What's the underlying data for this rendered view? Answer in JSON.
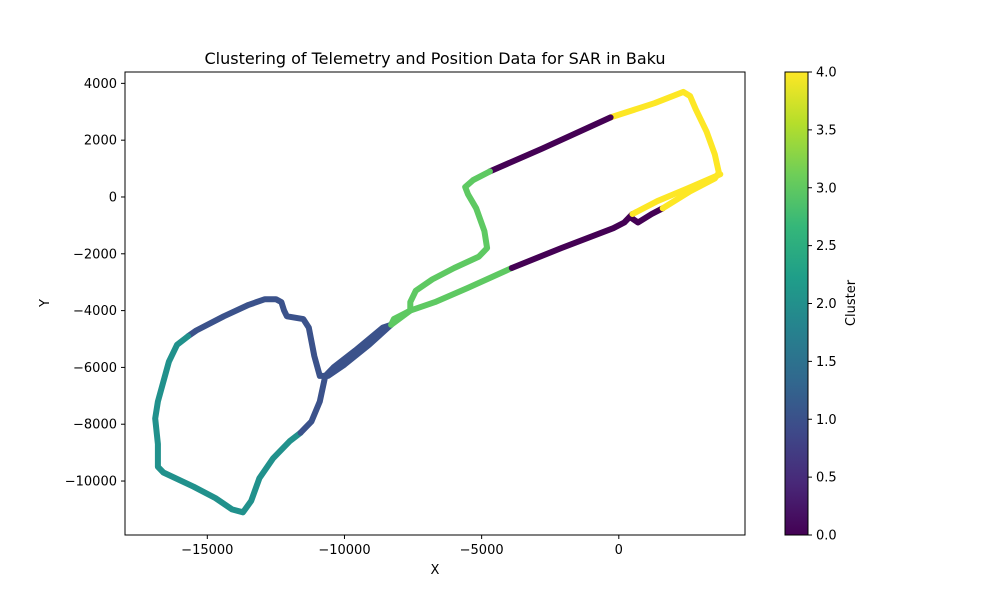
{
  "chart_data": {
    "type": "scatter",
    "title": "Clustering of Telemetry and Position Data for SAR in Baku",
    "xlabel": "X",
    "ylabel": "Y",
    "xlim": [
      -18000,
      4600
    ],
    "ylim": [
      -11900,
      4400
    ],
    "xticks": [
      -15000,
      -10000,
      -5000,
      0
    ],
    "xtick_labels": [
      "−15000",
      "−10000",
      "−5000",
      "0"
    ],
    "yticks": [
      4000,
      2000,
      0,
      -2000,
      -4000,
      -6000,
      -8000,
      -10000
    ],
    "ytick_labels": [
      "4000",
      "2000",
      "0",
      "−2000",
      "−4000",
      "−6000",
      "−8000",
      "−10000"
    ],
    "grid": false,
    "colorbar": {
      "label": "Cluster",
      "range": [
        0,
        4
      ],
      "ticks": [
        0,
        0.5,
        1,
        1.5,
        2,
        2.5,
        3,
        3.5,
        4
      ],
      "tick_labels": [
        "0.0",
        "0.5",
        "1.0",
        "1.5",
        "2.0",
        "2.5",
        "3.0",
        "3.5",
        "4.0"
      ],
      "colormap_stops": [
        "#440154",
        "#482878",
        "#3e4989",
        "#31688e",
        "#26828e",
        "#1f9e89",
        "#35b779",
        "#6ece58",
        "#b5de2b",
        "#fde725"
      ]
    },
    "cluster_colors": {
      "0": "#440154",
      "1": "#3b528b",
      "2": "#21918c",
      "3": "#5ec962",
      "4": "#fde725"
    },
    "track": [
      {
        "cluster": 0,
        "points": [
          [
            400,
            -700
          ],
          [
            700,
            -900
          ],
          [
            1200,
            -600
          ],
          [
            1600,
            -400
          ]
        ]
      },
      {
        "cluster": 4,
        "points": [
          [
            1600,
            -400
          ],
          [
            2600,
            200
          ],
          [
            3500,
            650
          ],
          [
            3650,
            850
          ],
          [
            3500,
            1500
          ],
          [
            3200,
            2300
          ],
          [
            2800,
            3100
          ],
          [
            2600,
            3550
          ],
          [
            2350,
            3700
          ],
          [
            1300,
            3300
          ],
          [
            -300,
            2800
          ]
        ]
      },
      {
        "cluster": 0,
        "points": [
          [
            -300,
            2800
          ],
          [
            -2800,
            1700
          ],
          [
            -4700,
            900
          ]
        ]
      },
      {
        "cluster": 3,
        "points": [
          [
            -4700,
            900
          ],
          [
            -5300,
            600
          ],
          [
            -5600,
            350
          ],
          [
            -5500,
            100
          ],
          [
            -5200,
            -400
          ],
          [
            -4900,
            -1200
          ],
          [
            -4800,
            -1800
          ],
          [
            -5100,
            -2100
          ],
          [
            -6000,
            -2500
          ],
          [
            -6800,
            -2900
          ],
          [
            -7400,
            -3300
          ],
          [
            -7600,
            -3700
          ],
          [
            -7600,
            -4000
          ],
          [
            -7800,
            -4100
          ],
          [
            -8200,
            -4300
          ],
          [
            -8300,
            -4500
          ]
        ]
      },
      {
        "cluster": 1,
        "points": [
          [
            -8300,
            -4500
          ],
          [
            -9100,
            -5200
          ],
          [
            -10000,
            -5900
          ],
          [
            -10600,
            -6300
          ],
          [
            -10900,
            -6300
          ],
          [
            -11100,
            -5600
          ],
          [
            -11300,
            -4600
          ],
          [
            -11500,
            -4300
          ],
          [
            -12100,
            -4200
          ],
          [
            -12200,
            -4000
          ],
          [
            -12300,
            -3700
          ],
          [
            -12500,
            -3600
          ],
          [
            -12900,
            -3600
          ],
          [
            -13500,
            -3800
          ],
          [
            -14400,
            -4200
          ],
          [
            -15400,
            -4700
          ],
          [
            -15700,
            -4900
          ]
        ]
      },
      {
        "cluster": 2,
        "points": [
          [
            -15700,
            -4900
          ],
          [
            -16100,
            -5200
          ],
          [
            -16400,
            -5800
          ],
          [
            -16600,
            -6500
          ],
          [
            -16800,
            -7200
          ],
          [
            -16900,
            -7800
          ],
          [
            -16800,
            -8700
          ],
          [
            -16800,
            -9500
          ],
          [
            -16600,
            -9700
          ],
          [
            -15500,
            -10200
          ],
          [
            -14700,
            -10600
          ],
          [
            -14100,
            -11000
          ],
          [
            -13700,
            -11100
          ],
          [
            -13400,
            -10700
          ],
          [
            -13100,
            -9900
          ],
          [
            -12600,
            -9200
          ],
          [
            -12000,
            -8600
          ],
          [
            -11600,
            -8300
          ]
        ]
      },
      {
        "cluster": 1,
        "points": [
          [
            -11600,
            -8300
          ],
          [
            -11200,
            -7900
          ],
          [
            -10900,
            -7200
          ],
          [
            -10700,
            -6300
          ],
          [
            -10400,
            -6000
          ],
          [
            -9600,
            -5400
          ],
          [
            -8600,
            -4600
          ],
          [
            -8300,
            -4500
          ]
        ]
      },
      {
        "cluster": 3,
        "points": [
          [
            -8300,
            -4500
          ],
          [
            -7600,
            -4000
          ],
          [
            -6700,
            -3700
          ],
          [
            -5500,
            -3200
          ],
          [
            -3900,
            -2500
          ]
        ]
      },
      {
        "cluster": 0,
        "points": [
          [
            -3900,
            -2500
          ],
          [
            -2100,
            -1800
          ],
          [
            -200,
            -1100
          ],
          [
            200,
            -900
          ],
          [
            500,
            -600
          ]
        ]
      },
      {
        "cluster": 4,
        "points": [
          [
            500,
            -600
          ],
          [
            1400,
            -150
          ],
          [
            2500,
            300
          ],
          [
            3700,
            800
          ]
        ]
      }
    ]
  }
}
